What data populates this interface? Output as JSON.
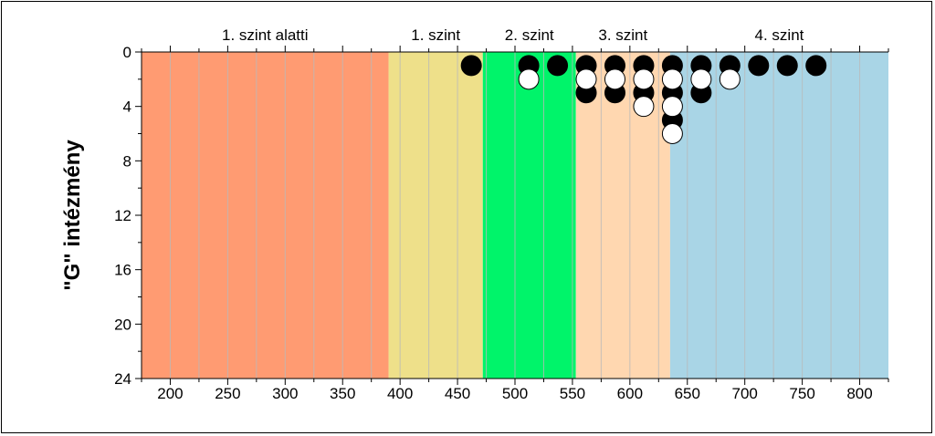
{
  "chart_data": {
    "type": "scatter",
    "title": "",
    "xlabel": "",
    "ylabel": "\"G\" intézmény",
    "xlim": [
      175,
      825
    ],
    "ylim": [
      0,
      24
    ],
    "y_inverted": true,
    "x_ticks": [
      200,
      250,
      300,
      350,
      400,
      450,
      500,
      550,
      600,
      650,
      700,
      750,
      800
    ],
    "y_ticks": [
      0,
      4,
      8,
      12,
      16,
      20,
      24
    ],
    "grid": "vertical minor lines every 25",
    "bands": [
      {
        "label": "1. szint alatti",
        "from": 175,
        "to": 390,
        "color": "#FF9B72"
      },
      {
        "label": "1. szint",
        "from": 390,
        "to": 472,
        "color": "#EEE08A"
      },
      {
        "label": "2. szint",
        "from": 472,
        "to": 553,
        "color": "#00F46A"
      },
      {
        "label": "3. szint",
        "from": 553,
        "to": 635,
        "color": "#FFD7B0"
      },
      {
        "label": "4. szint",
        "from": 635,
        "to": 825,
        "color": "#A9D5E6"
      }
    ],
    "series": [
      {
        "marker": "filled",
        "color": "#000000",
        "points": [
          [
            462,
            1
          ],
          [
            512,
            1
          ],
          [
            537,
            1
          ],
          [
            562,
            1
          ],
          [
            562,
            3
          ],
          [
            587,
            1
          ],
          [
            587,
            3
          ],
          [
            612,
            1
          ],
          [
            612,
            3
          ],
          [
            637,
            1
          ],
          [
            637,
            3
          ],
          [
            637,
            5
          ],
          [
            662,
            1
          ],
          [
            662,
            3
          ],
          [
            687,
            1
          ],
          [
            712,
            1
          ],
          [
            737,
            1
          ],
          [
            762,
            1
          ]
        ]
      },
      {
        "marker": "hollow",
        "color": "#ffffff",
        "points": [
          [
            512,
            2
          ],
          [
            562,
            2
          ],
          [
            587,
            2
          ],
          [
            612,
            2
          ],
          [
            612,
            4
          ],
          [
            637,
            2
          ],
          [
            637,
            4
          ],
          [
            637,
            6
          ],
          [
            662,
            2
          ],
          [
            687,
            2
          ]
        ]
      }
    ]
  }
}
